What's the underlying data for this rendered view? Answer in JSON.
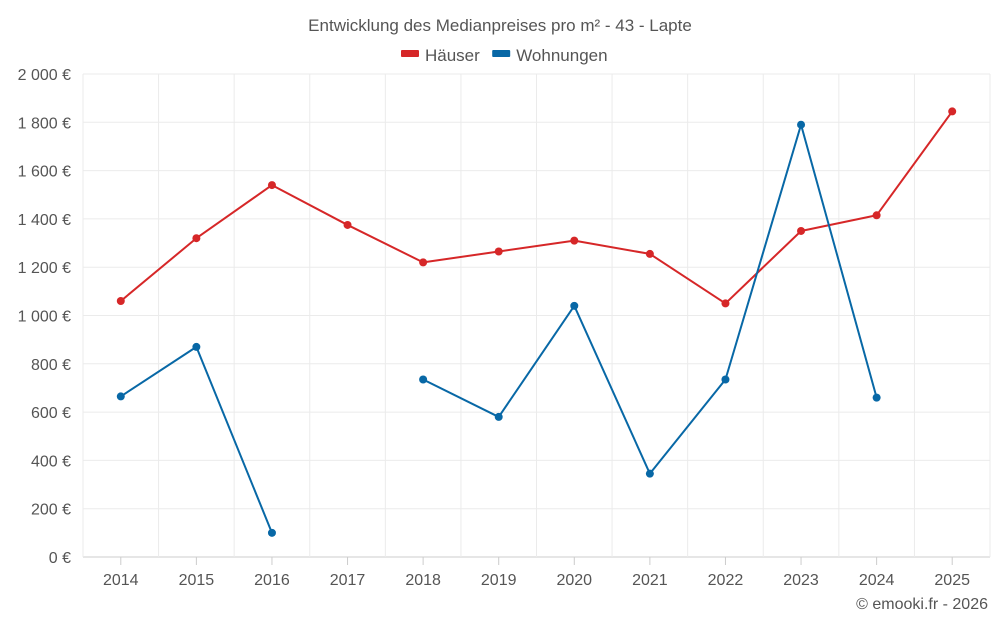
{
  "chart_data": {
    "type": "line",
    "title": "Entwicklung des Medianpreises pro m² - 43 - Lapte",
    "categories": [
      "2014",
      "2015",
      "2016",
      "2017",
      "2018",
      "2019",
      "2020",
      "2021",
      "2022",
      "2023",
      "2024",
      "2025"
    ],
    "y_ticks": [
      "0 €",
      "200 €",
      "400 €",
      "600 €",
      "800 €",
      "1 000 €",
      "1 200 €",
      "1 400 €",
      "1 600 €",
      "1 800 €",
      "2 000 €"
    ],
    "ylim": [
      0,
      2000
    ],
    "y_step": 200,
    "grid": true,
    "legend_position": "top-center",
    "series": [
      {
        "name": "Häuser",
        "color": "#d62728",
        "values": [
          1060,
          1320,
          1540,
          1375,
          1220,
          1265,
          1310,
          1255,
          1050,
          1350,
          1415,
          1845
        ]
      },
      {
        "name": "Wohnungen",
        "color": "#0868a6",
        "values": [
          665,
          870,
          100,
          null,
          735,
          580,
          1040,
          345,
          735,
          1790,
          660,
          null
        ]
      }
    ]
  },
  "credit": "© emooki.fr - 2026"
}
